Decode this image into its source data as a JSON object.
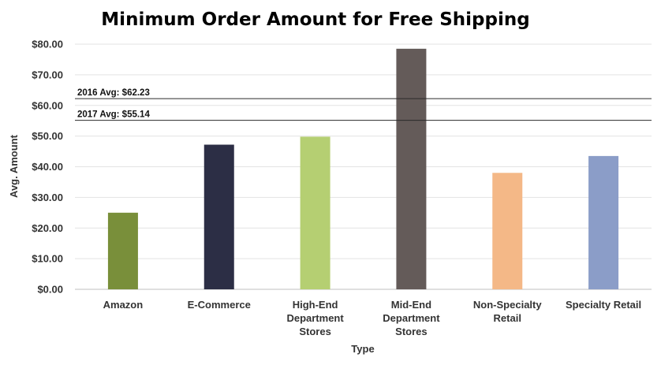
{
  "chart_data": {
    "type": "bar",
    "title": "Minimum Order Amount for Free Shipping",
    "xlabel": "Type",
    "ylabel": "Avg. Amount",
    "ylim": [
      0,
      80
    ],
    "yticks": [
      "$0.00",
      "$10.00",
      "$20.00",
      "$30.00",
      "$40.00",
      "$50.00",
      "$60.00",
      "$70.00",
      "$80.00"
    ],
    "grid": true,
    "categories": [
      [
        "Amazon"
      ],
      [
        "E-Commerce"
      ],
      [
        "High-End",
        "Department",
        "Stores"
      ],
      [
        "Mid-End",
        "Department",
        "Stores"
      ],
      [
        "Non-Specialty",
        "Retail"
      ],
      [
        "Specialty Retail"
      ]
    ],
    "values": [
      25,
      47.2,
      49.8,
      78.5,
      38,
      43.5
    ],
    "colors": [
      "#798f3a",
      "#2c2e45",
      "#b5cf72",
      "#645b59",
      "#f4b887",
      "#8b9dc8"
    ],
    "reference_lines": [
      {
        "label": "2016 Avg: $62.23",
        "value": 62.23
      },
      {
        "label": "2017 Avg: $55.14",
        "value": 55.14
      }
    ]
  }
}
